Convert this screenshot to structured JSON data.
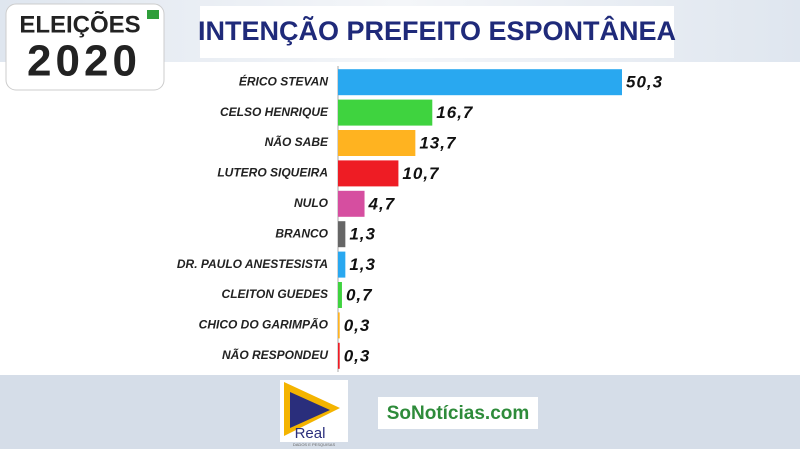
{
  "badge": {
    "line1": "ELEIÇÕES",
    "line2": "2020"
  },
  "footer": {
    "logo1": "Real",
    "logo1_sub": "DADOS E PESQUISAS",
    "logo2": "SoNotícias.com"
  },
  "chart_data": {
    "type": "bar",
    "orientation": "horizontal",
    "title": "INTENÇÃO PREFEITO ESPONTÂNEA",
    "categories": [
      "ÉRICO STEVAN",
      "CELSO HENRIQUE",
      "NÃO SABE",
      "LUTERO SIQUEIRA",
      "NULO",
      "BRANCO",
      "DR. PAULO ANESTESISTA",
      "CLEITON GUEDES",
      "CHICO DO GARIMPÃO",
      "NÃO RESPONDEU"
    ],
    "values": [
      50.3,
      16.7,
      13.7,
      10.7,
      4.7,
      1.3,
      1.3,
      0.7,
      0.3,
      0.3
    ],
    "value_labels": [
      "50,3",
      "16,7",
      "13,7",
      "10,7",
      "4,7",
      "1,3",
      "1,3",
      "0,7",
      "0,3",
      "0,3"
    ],
    "colors": [
      "#29a8f0",
      "#3fd33f",
      "#ffb320",
      "#ee1c24",
      "#d64ea0",
      "#666666",
      "#29a8f0",
      "#3fd33f",
      "#ffb320",
      "#ee1c24"
    ]
  }
}
